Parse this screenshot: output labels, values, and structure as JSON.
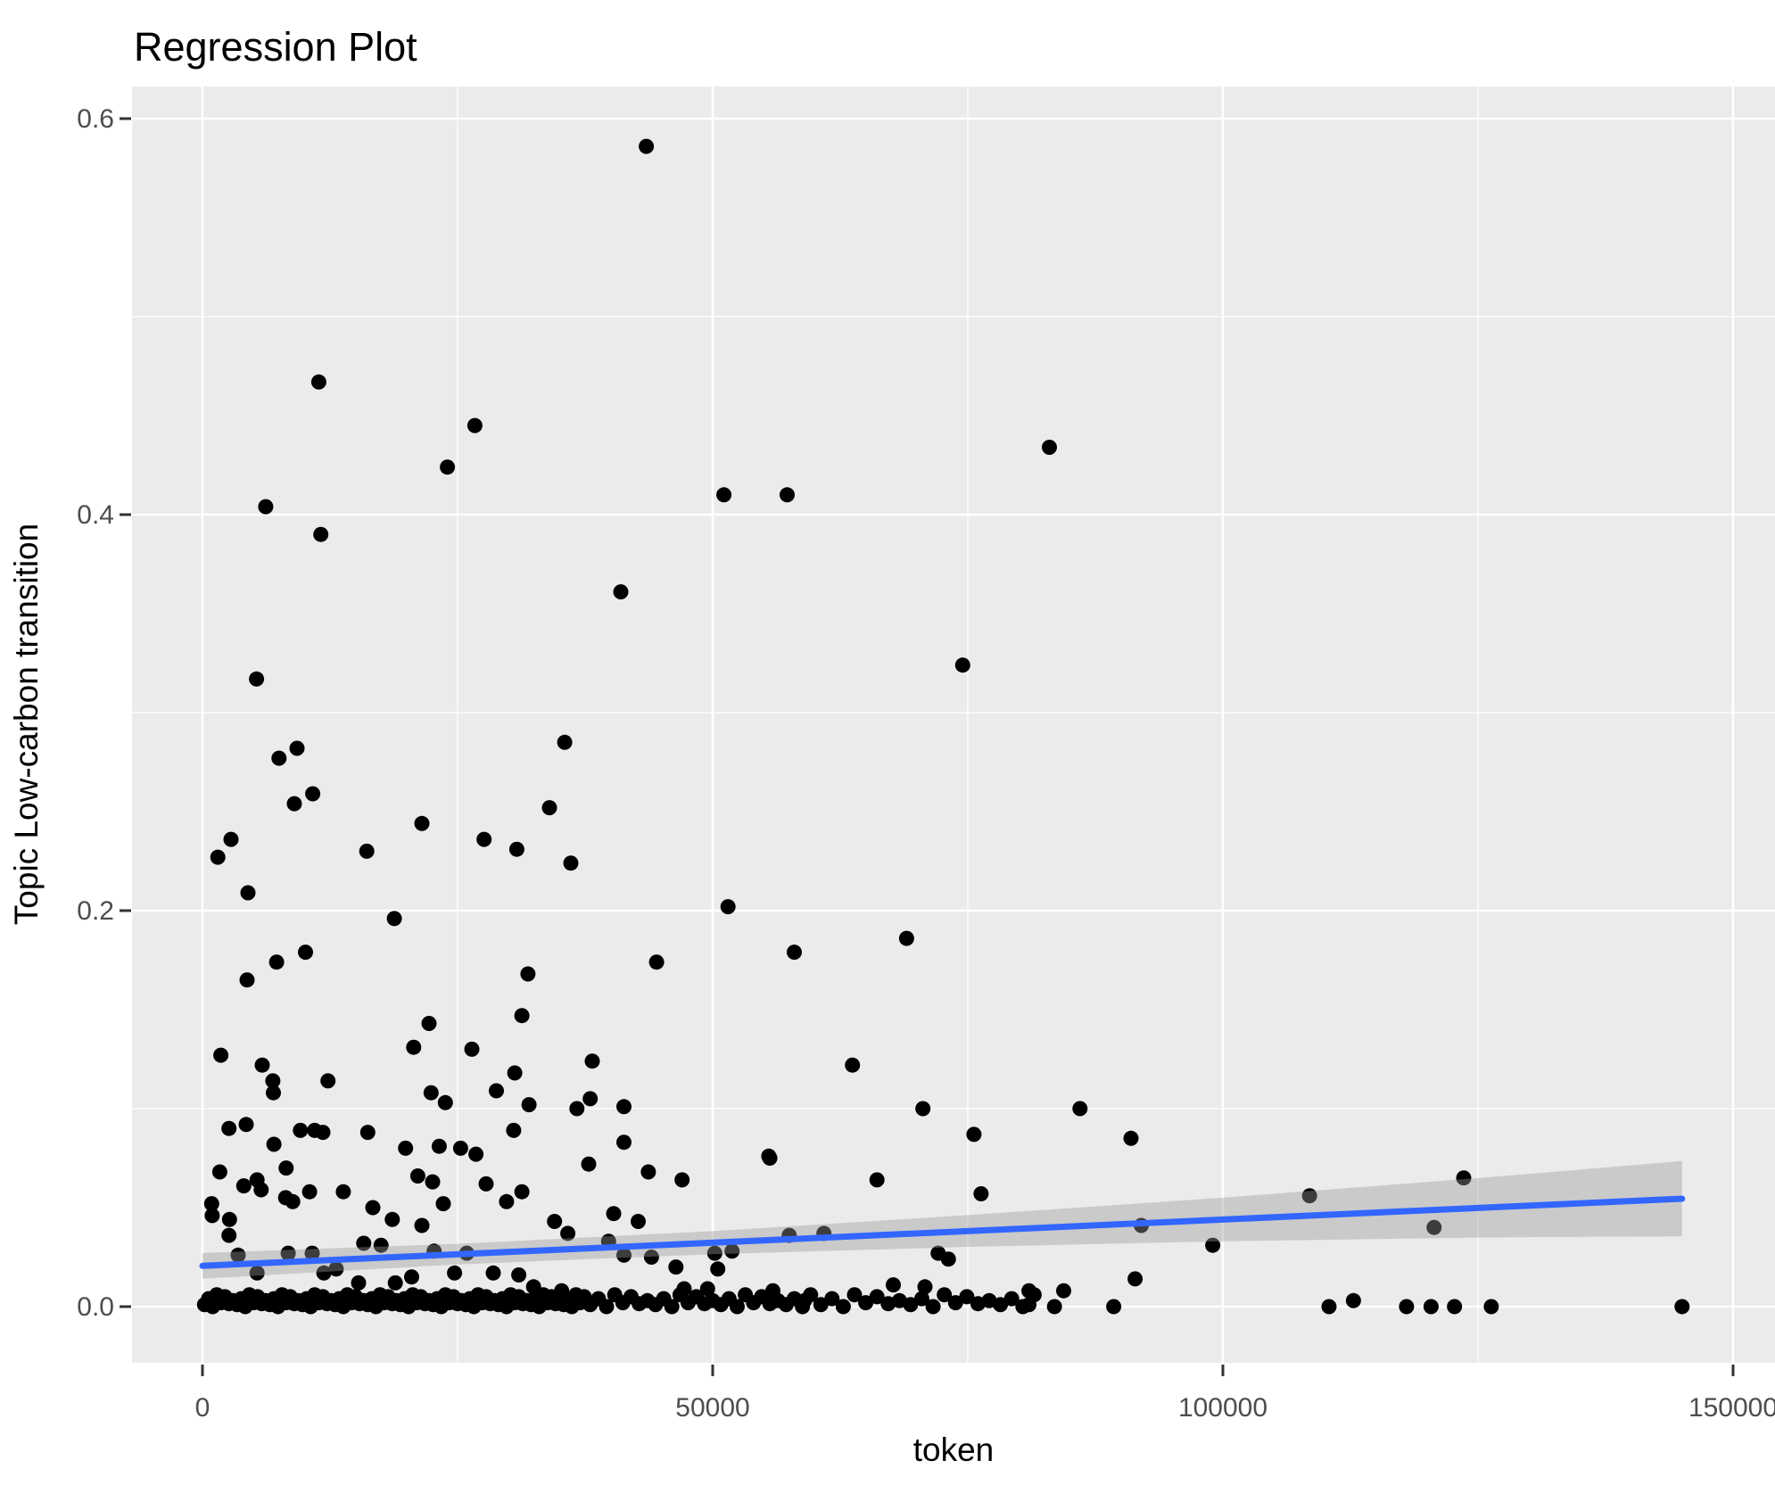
{
  "chart_data": {
    "type": "scatter",
    "title": "Regression Plot",
    "xlabel": "token",
    "ylabel": "Topic Low-carbon transition",
    "xlim": [
      -6900,
      152300
    ],
    "ylim": [
      -0.0284,
      0.616
    ],
    "grid": true,
    "legend": false,
    "x_ticks": [
      {
        "value": 0,
        "label": "0"
      },
      {
        "value": 50000,
        "label": "50000"
      },
      {
        "value": 100000,
        "label": "100000"
      },
      {
        "value": 150000,
        "label": "150000"
      }
    ],
    "y_ticks": [
      {
        "value": 0.0,
        "label": "0.0"
      },
      {
        "value": 0.2,
        "label": "0.2"
      },
      {
        "value": 0.4,
        "label": "0.4"
      },
      {
        "value": 0.6,
        "label": "0.6"
      }
    ],
    "x_minor_gridlines": [
      25000,
      75000,
      125000
    ],
    "y_minor_gridlines": [
      0.1,
      0.3,
      0.5
    ],
    "regression_line": {
      "x": [
        0,
        145000
      ],
      "y": [
        0.0206,
        0.0545
      ]
    },
    "ci_ribbon": {
      "x": [
        0,
        25000,
        50000,
        75000,
        100000,
        125000,
        145000
      ],
      "upper": [
        0.0271,
        0.0317,
        0.0381,
        0.0462,
        0.055,
        0.0649,
        0.0735
      ],
      "lower": [
        0.0141,
        0.0213,
        0.0265,
        0.0302,
        0.033,
        0.0349,
        0.0355
      ]
    },
    "points": [
      [
        43500,
        0.586
      ],
      [
        11400,
        0.467
      ],
      [
        26700,
        0.445
      ],
      [
        24000,
        0.424
      ],
      [
        51100,
        0.41
      ],
      [
        57300,
        0.41
      ],
      [
        6200,
        0.404
      ],
      [
        11600,
        0.39
      ],
      [
        41000,
        0.361
      ],
      [
        83000,
        0.434
      ],
      [
        74500,
        0.324
      ],
      [
        5300,
        0.317
      ],
      [
        9270,
        0.282
      ],
      [
        7500,
        0.277
      ],
      [
        35500,
        0.285
      ],
      [
        10800,
        0.259
      ],
      [
        9000,
        0.254
      ],
      [
        34000,
        0.252
      ],
      [
        21500,
        0.244
      ],
      [
        27600,
        0.236
      ],
      [
        2800,
        0.236
      ],
      [
        30800,
        0.231
      ],
      [
        16100,
        0.23
      ],
      [
        1500,
        0.227
      ],
      [
        36100,
        0.224
      ],
      [
        4460,
        0.209
      ],
      [
        51500,
        0.202
      ],
      [
        18800,
        0.196
      ],
      [
        69000,
        0.186
      ],
      [
        58000,
        0.179
      ],
      [
        10100,
        0.179
      ],
      [
        44500,
        0.174
      ],
      [
        7260,
        0.174
      ],
      [
        31900,
        0.168
      ],
      [
        4370,
        0.165
      ],
      [
        31300,
        0.147
      ],
      [
        22200,
        0.143
      ],
      [
        20700,
        0.131
      ],
      [
        26400,
        0.13
      ],
      [
        1800,
        0.127
      ],
      [
        38200,
        0.124
      ],
      [
        63700,
        0.122
      ],
      [
        5860,
        0.122
      ],
      [
        30600,
        0.118
      ],
      [
        6900,
        0.114
      ],
      [
        12300,
        0.114
      ],
      [
        28800,
        0.109
      ],
      [
        6950,
        0.108
      ],
      [
        22400,
        0.108
      ],
      [
        38000,
        0.105
      ],
      [
        23800,
        0.103
      ],
      [
        32000,
        0.102
      ],
      [
        41300,
        0.101
      ],
      [
        70600,
        0.1
      ],
      [
        36700,
        0.1
      ],
      [
        86000,
        0.1
      ],
      [
        75600,
        0.087
      ],
      [
        91000,
        0.085
      ],
      [
        41300,
        0.083
      ],
      [
        55500,
        0.076
      ],
      [
        123600,
        0.065
      ],
      [
        108500,
        0.056
      ],
      [
        92000,
        0.041
      ],
      [
        120700,
        0.04
      ],
      [
        99000,
        0.031
      ],
      [
        91400,
        0.014
      ],
      [
        2600,
        0.09
      ],
      [
        4280,
        0.092
      ],
      [
        7000,
        0.082
      ],
      [
        9600,
        0.089
      ],
      [
        11000,
        0.089
      ],
      [
        11800,
        0.088
      ],
      [
        16200,
        0.088
      ],
      [
        19900,
        0.08
      ],
      [
        23200,
        0.081
      ],
      [
        25300,
        0.08
      ],
      [
        26800,
        0.077
      ],
      [
        30500,
        0.089
      ],
      [
        37850,
        0.072
      ],
      [
        43700,
        0.068
      ],
      [
        47000,
        0.064
      ],
      [
        55600,
        0.075
      ],
      [
        66100,
        0.064
      ],
      [
        76300,
        0.057
      ],
      [
        1700,
        0.068
      ],
      [
        8200,
        0.07
      ],
      [
        5350,
        0.064
      ],
      [
        4050,
        0.061
      ],
      [
        5750,
        0.059
      ],
      [
        900,
        0.052
      ],
      [
        950,
        0.046
      ],
      [
        2650,
        0.044
      ],
      [
        8150,
        0.055
      ],
      [
        8850,
        0.053
      ],
      [
        10500,
        0.058
      ],
      [
        13800,
        0.058
      ],
      [
        16700,
        0.05
      ],
      [
        18600,
        0.044
      ],
      [
        21500,
        0.041
      ],
      [
        22550,
        0.063
      ],
      [
        21100,
        0.066
      ],
      [
        23600,
        0.052
      ],
      [
        27800,
        0.062
      ],
      [
        29800,
        0.053
      ],
      [
        31300,
        0.058
      ],
      [
        34500,
        0.043
      ],
      [
        35800,
        0.037
      ],
      [
        40300,
        0.047
      ],
      [
        42700,
        0.043
      ],
      [
        39800,
        0.033
      ],
      [
        57500,
        0.036
      ],
      [
        60900,
        0.037
      ],
      [
        2600,
        0.036
      ],
      [
        15800,
        0.032
      ],
      [
        17500,
        0.031
      ],
      [
        3500,
        0.026
      ],
      [
        5350,
        0.017
      ],
      [
        8400,
        0.027
      ],
      [
        10750,
        0.027
      ],
      [
        13100,
        0.019
      ],
      [
        18900,
        0.012
      ],
      [
        15300,
        0.012
      ],
      [
        11900,
        0.017
      ],
      [
        20500,
        0.015
      ],
      [
        22700,
        0.028
      ],
      [
        25900,
        0.027
      ],
      [
        24700,
        0.017
      ],
      [
        28500,
        0.017
      ],
      [
        31000,
        0.016
      ],
      [
        32450,
        0.01
      ],
      [
        35200,
        0.008
      ],
      [
        41300,
        0.026
      ],
      [
        44000,
        0.025
      ],
      [
        46400,
        0.02
      ],
      [
        50200,
        0.027
      ],
      [
        51900,
        0.028
      ],
      [
        50500,
        0.019
      ],
      [
        47200,
        0.009
      ],
      [
        49500,
        0.009
      ],
      [
        55900,
        0.008
      ],
      [
        59000,
        0.003
      ],
      [
        67700,
        0.011
      ],
      [
        70800,
        0.01
      ],
      [
        72100,
        0.027
      ],
      [
        73100,
        0.024
      ],
      [
        81000,
        0.008
      ],
      [
        84400,
        0.008
      ],
      [
        81000,
        0.001
      ],
      [
        83500,
        0.0
      ],
      [
        89300,
        0.0
      ],
      [
        110400,
        0.0
      ],
      [
        112800,
        0.003
      ],
      [
        118000,
        0.0
      ],
      [
        120400,
        0.0
      ],
      [
        122700,
        0.0
      ],
      [
        126300,
        0.0
      ],
      [
        145000,
        0.0
      ]
    ],
    "zero_strip": {
      "segments": [
        {
          "from": 200,
          "to": 37400,
          "step": 400
        },
        {
          "from": 38000,
          "to": 60000,
          "step": 800
        },
        {
          "from": 60600,
          "to": 82000,
          "step": 1100
        }
      ],
      "y_cycle": [
        0.001,
        0.004,
        0.0,
        0.006,
        0.002,
        0.005,
        0.0015,
        0.003
      ]
    },
    "colors": {
      "point": "#000000",
      "regression_line": "#3366FF",
      "ribbon": "rgba(153,153,153,0.4)",
      "panel_background": "#EBEBEB",
      "gridline": "#FFFFFF",
      "tick_label": "#4D4D4D",
      "axis_title": "#000000",
      "title": "#000000",
      "tick_mark": "#333333"
    }
  }
}
